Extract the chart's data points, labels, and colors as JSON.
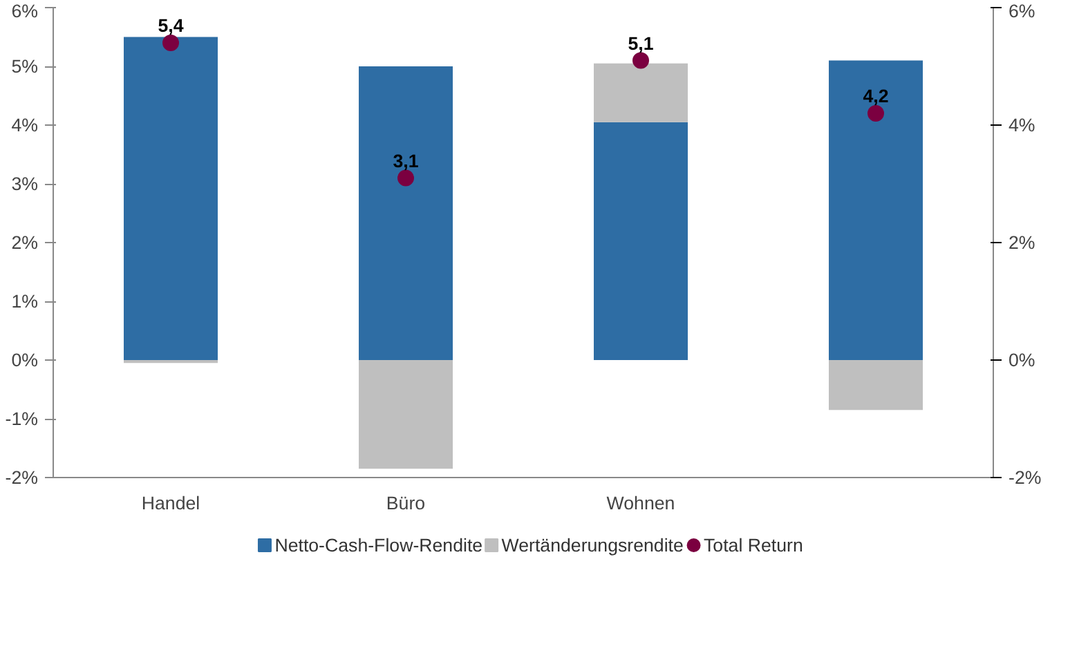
{
  "chart_data": {
    "type": "bar",
    "stacked": true,
    "categories": [
      "Handel",
      "Büro",
      "Wohnen",
      null
    ],
    "series": [
      {
        "name": "Netto-Cash-Flow-Rendite",
        "color": "#2e6da4",
        "values": [
          5.5,
          5.0,
          4.05,
          5.1
        ]
      },
      {
        "name": "Wertänderungsrendite",
        "color": "#bfbfbf",
        "values": [
          -0.05,
          -1.85,
          1.0,
          -0.85
        ]
      },
      {
        "name": "Total Return",
        "type": "scatter",
        "color": "#7b0040",
        "values": [
          5.4,
          3.1,
          5.1,
          4.2
        ],
        "value_labels": [
          "5,4",
          "3,1",
          "5,1",
          "4,2"
        ],
        "marker": "circle"
      }
    ],
    "ylim": [
      -2,
      6
    ],
    "yticks": [
      {
        "value": -2,
        "label": "-2%"
      },
      {
        "value": -1,
        "label": "-1%"
      },
      {
        "value": 0,
        "label": "0%"
      },
      {
        "value": 1,
        "label": "1%"
      },
      {
        "value": 2,
        "label": "2%"
      },
      {
        "value": 3,
        "label": "3%"
      },
      {
        "value": 4,
        "label": "4%"
      },
      {
        "value": 5,
        "label": "5%"
      },
      {
        "value": 6,
        "label": "6%"
      }
    ],
    "y2lim": [
      -2,
      6
    ],
    "y2ticks": [
      {
        "value": -2,
        "label": "-2%"
      },
      {
        "value": 0,
        "label": "0%"
      },
      {
        "value": 2,
        "label": "2%"
      },
      {
        "value": 4,
        "label": "4%"
      },
      {
        "value": 6,
        "label": "6%"
      }
    ],
    "grid": false,
    "legend": "bottom"
  }
}
